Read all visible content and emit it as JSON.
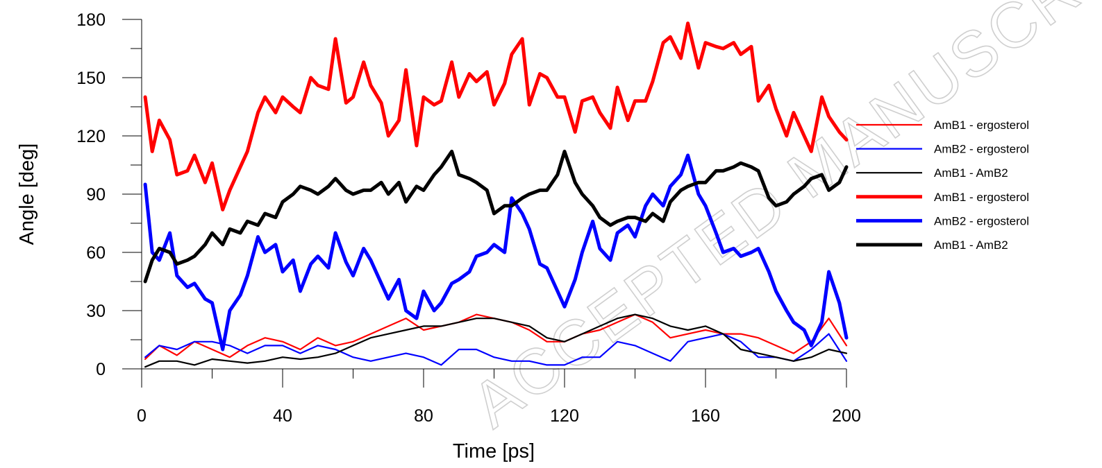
{
  "chart_data": {
    "type": "line",
    "title": "",
    "xlabel": "Time [ps]",
    "ylabel": "Angle [deg]",
    "xlim": [
      0,
      200
    ],
    "ylim": [
      0,
      180
    ],
    "xticks": [
      0,
      40,
      80,
      120,
      160,
      200
    ],
    "yticks": [
      0,
      30,
      60,
      90,
      120,
      150,
      180
    ],
    "grid": false,
    "legend_position": "right",
    "watermark_text": "ACCEPTED MANUSCRIPT",
    "series": [
      {
        "name": "AmB1 - ergosterol",
        "color": "#ff0000",
        "width": "thin",
        "x": [
          1,
          5,
          10,
          15,
          20,
          25,
          30,
          35,
          40,
          45,
          50,
          55,
          60,
          65,
          70,
          75,
          80,
          85,
          90,
          95,
          100,
          105,
          110,
          115,
          120,
          125,
          130,
          135,
          140,
          145,
          150,
          155,
          160,
          165,
          170,
          175,
          180,
          185,
          190,
          195,
          200
        ],
        "y": [
          5,
          12,
          7,
          14,
          10,
          6,
          12,
          16,
          14,
          10,
          16,
          12,
          14,
          18,
          22,
          26,
          20,
          22,
          24,
          28,
          26,
          24,
          20,
          14,
          14,
          18,
          20,
          24,
          28,
          24,
          16,
          18,
          20,
          18,
          18,
          16,
          12,
          8,
          14,
          26,
          12
        ]
      },
      {
        "name": "AmB2 - ergosterol",
        "color": "#0000ff",
        "width": "thin",
        "x": [
          1,
          5,
          10,
          15,
          20,
          25,
          30,
          35,
          40,
          45,
          50,
          55,
          60,
          65,
          70,
          75,
          80,
          85,
          90,
          95,
          100,
          105,
          110,
          115,
          120,
          125,
          130,
          135,
          140,
          145,
          150,
          155,
          160,
          165,
          170,
          175,
          180,
          185,
          190,
          195,
          200
        ],
        "y": [
          6,
          12,
          10,
          14,
          14,
          12,
          8,
          12,
          12,
          8,
          12,
          10,
          6,
          4,
          6,
          8,
          6,
          2,
          10,
          10,
          6,
          4,
          4,
          2,
          2,
          6,
          6,
          14,
          12,
          8,
          4,
          14,
          16,
          18,
          14,
          6,
          6,
          4,
          10,
          18,
          4
        ]
      },
      {
        "name": "AmB1 - AmB2",
        "color": "#000000",
        "width": "thin",
        "x": [
          1,
          5,
          10,
          15,
          20,
          25,
          30,
          35,
          40,
          45,
          50,
          55,
          60,
          65,
          70,
          75,
          80,
          85,
          90,
          95,
          100,
          105,
          110,
          115,
          120,
          125,
          130,
          135,
          140,
          145,
          150,
          155,
          160,
          165,
          170,
          175,
          180,
          185,
          190,
          195,
          200
        ],
        "y": [
          1,
          4,
          4,
          2,
          5,
          4,
          3,
          4,
          6,
          5,
          6,
          8,
          12,
          16,
          18,
          20,
          22,
          22,
          24,
          26,
          26,
          24,
          22,
          16,
          14,
          18,
          22,
          26,
          28,
          26,
          22,
          20,
          22,
          18,
          10,
          8,
          6,
          4,
          6,
          10,
          8
        ]
      },
      {
        "name": "AmB1 - ergosterol",
        "color": "#ff0000",
        "width": "thick",
        "x": [
          1,
          3,
          5,
          8,
          10,
          13,
          15,
          18,
          20,
          23,
          25,
          28,
          30,
          33,
          35,
          38,
          40,
          43,
          45,
          48,
          50,
          53,
          55,
          58,
          60,
          63,
          65,
          68,
          70,
          73,
          75,
          78,
          80,
          83,
          85,
          88,
          90,
          93,
          95,
          98,
          100,
          103,
          105,
          108,
          110,
          113,
          115,
          118,
          120,
          123,
          125,
          128,
          130,
          133,
          135,
          138,
          140,
          143,
          145,
          148,
          150,
          153,
          155,
          158,
          160,
          163,
          165,
          168,
          170,
          173,
          175,
          178,
          180,
          183,
          185,
          188,
          190,
          193,
          195,
          198,
          200
        ],
        "y": [
          140,
          112,
          128,
          118,
          100,
          102,
          110,
          96,
          106,
          82,
          92,
          104,
          112,
          132,
          140,
          132,
          140,
          135,
          132,
          150,
          146,
          144,
          170,
          137,
          140,
          158,
          146,
          137,
          120,
          128,
          154,
          115,
          140,
          136,
          138,
          158,
          140,
          152,
          148,
          153,
          136,
          147,
          162,
          170,
          136,
          152,
          150,
          140,
          140,
          122,
          138,
          140,
          132,
          124,
          145,
          128,
          138,
          138,
          148,
          168,
          171,
          160,
          178,
          155,
          168,
          166,
          165,
          168,
          162,
          166,
          138,
          146,
          134,
          120,
          132,
          120,
          112,
          140,
          130,
          122,
          118
        ]
      },
      {
        "name": "AmB2 - ergosterol",
        "color": "#0000ff",
        "width": "thick",
        "x": [
          1,
          3,
          5,
          8,
          10,
          13,
          15,
          18,
          20,
          23,
          25,
          28,
          30,
          33,
          35,
          38,
          40,
          43,
          45,
          48,
          50,
          53,
          55,
          58,
          60,
          63,
          65,
          68,
          70,
          73,
          75,
          78,
          80,
          83,
          85,
          88,
          90,
          93,
          95,
          98,
          100,
          103,
          105,
          108,
          110,
          113,
          115,
          118,
          120,
          123,
          125,
          128,
          130,
          133,
          135,
          138,
          140,
          143,
          145,
          148,
          150,
          153,
          155,
          158,
          160,
          163,
          165,
          168,
          170,
          173,
          175,
          178,
          180,
          183,
          185,
          188,
          190,
          193,
          195,
          198,
          200
        ],
        "y": [
          95,
          60,
          56,
          70,
          48,
          42,
          44,
          36,
          34,
          10,
          30,
          38,
          48,
          68,
          60,
          64,
          50,
          56,
          40,
          54,
          58,
          52,
          70,
          55,
          48,
          62,
          56,
          44,
          36,
          46,
          30,
          26,
          40,
          30,
          34,
          44,
          46,
          50,
          58,
          60,
          64,
          60,
          88,
          80,
          72,
          54,
          52,
          40,
          32,
          46,
          60,
          76,
          62,
          56,
          70,
          74,
          68,
          84,
          90,
          84,
          94,
          100,
          110,
          90,
          84,
          70,
          60,
          62,
          58,
          60,
          62,
          50,
          40,
          30,
          24,
          20,
          12,
          24,
          50,
          34,
          16
        ]
      },
      {
        "name": "AmB1 - AmB2",
        "color": "#000000",
        "width": "thick",
        "x": [
          1,
          3,
          5,
          8,
          10,
          13,
          15,
          18,
          20,
          23,
          25,
          28,
          30,
          33,
          35,
          38,
          40,
          43,
          45,
          48,
          50,
          53,
          55,
          58,
          60,
          63,
          65,
          68,
          70,
          73,
          75,
          78,
          80,
          83,
          85,
          88,
          90,
          93,
          95,
          98,
          100,
          103,
          105,
          108,
          110,
          113,
          115,
          118,
          120,
          123,
          125,
          128,
          130,
          133,
          135,
          138,
          140,
          143,
          145,
          148,
          150,
          153,
          155,
          158,
          160,
          163,
          165,
          168,
          170,
          173,
          175,
          178,
          180,
          183,
          185,
          188,
          190,
          193,
          195,
          198,
          200
        ],
        "y": [
          45,
          56,
          62,
          60,
          54,
          56,
          58,
          64,
          70,
          64,
          72,
          70,
          76,
          74,
          80,
          78,
          86,
          90,
          94,
          92,
          90,
          94,
          98,
          92,
          90,
          92,
          92,
          96,
          90,
          96,
          86,
          94,
          92,
          100,
          104,
          112,
          100,
          98,
          96,
          92,
          80,
          84,
          84,
          88,
          90,
          92,
          92,
          100,
          112,
          96,
          90,
          84,
          78,
          74,
          76,
          78,
          78,
          76,
          80,
          76,
          86,
          92,
          94,
          96,
          96,
          102,
          102,
          104,
          106,
          104,
          102,
          88,
          84,
          86,
          90,
          94,
          98,
          100,
          92,
          96,
          104
        ]
      }
    ]
  }
}
